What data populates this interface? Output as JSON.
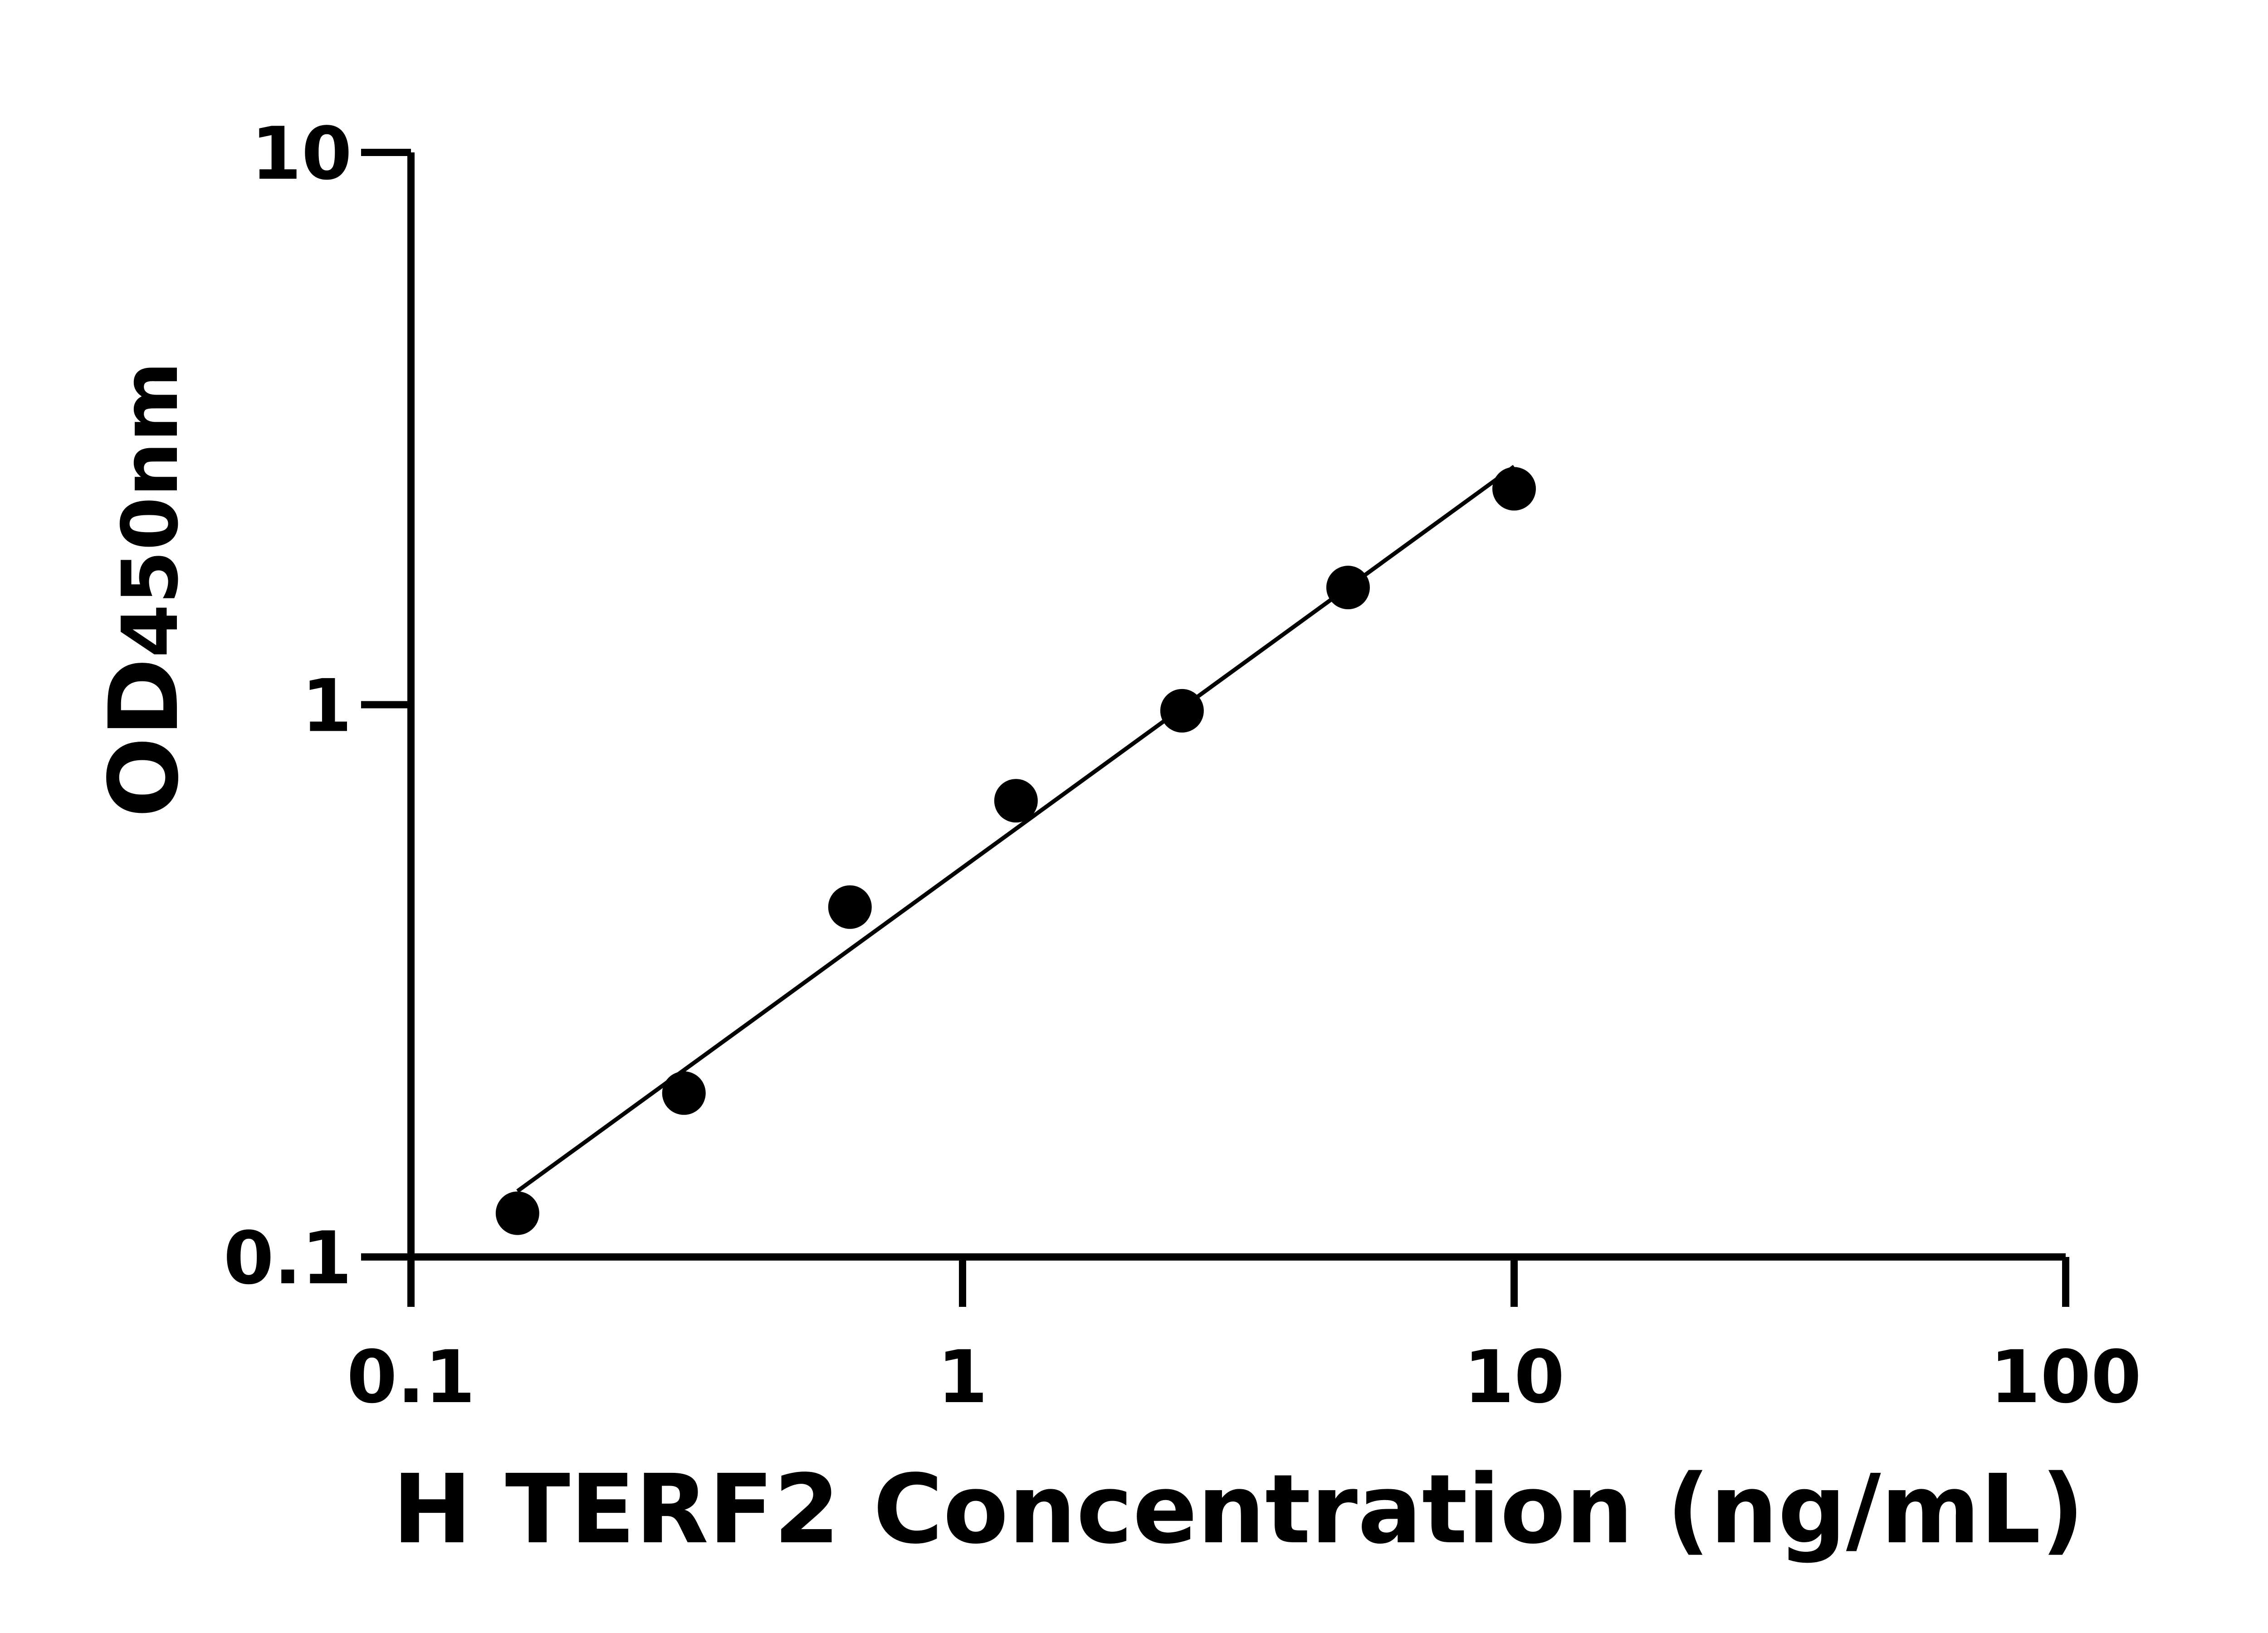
{
  "chart_data": {
    "type": "scatter",
    "title": "",
    "xlabel": "H TERF2 Concentration (ng/mL)",
    "ylabel_main": "OD",
    "ylabel_sub": "450nm",
    "x_scale": "log",
    "y_scale": "log",
    "xlim": [
      0.1,
      100
    ],
    "ylim": [
      0.1,
      10
    ],
    "x_ticks": [
      "0.1",
      "1",
      "10",
      "100"
    ],
    "y_ticks": [
      "0.1",
      "1",
      "10"
    ],
    "grid": false,
    "legend": "none",
    "fit_line": true,
    "series": [
      {
        "x": [
          0.156,
          0.3125,
          0.625,
          1.25,
          2.5,
          5,
          10
        ],
        "y": [
          0.12,
          0.198,
          0.43,
          0.67,
          0.975,
          1.63,
          2.46
        ]
      }
    ],
    "colors": {
      "points": "#000000",
      "line": "#000000",
      "axes": "#000000"
    }
  }
}
